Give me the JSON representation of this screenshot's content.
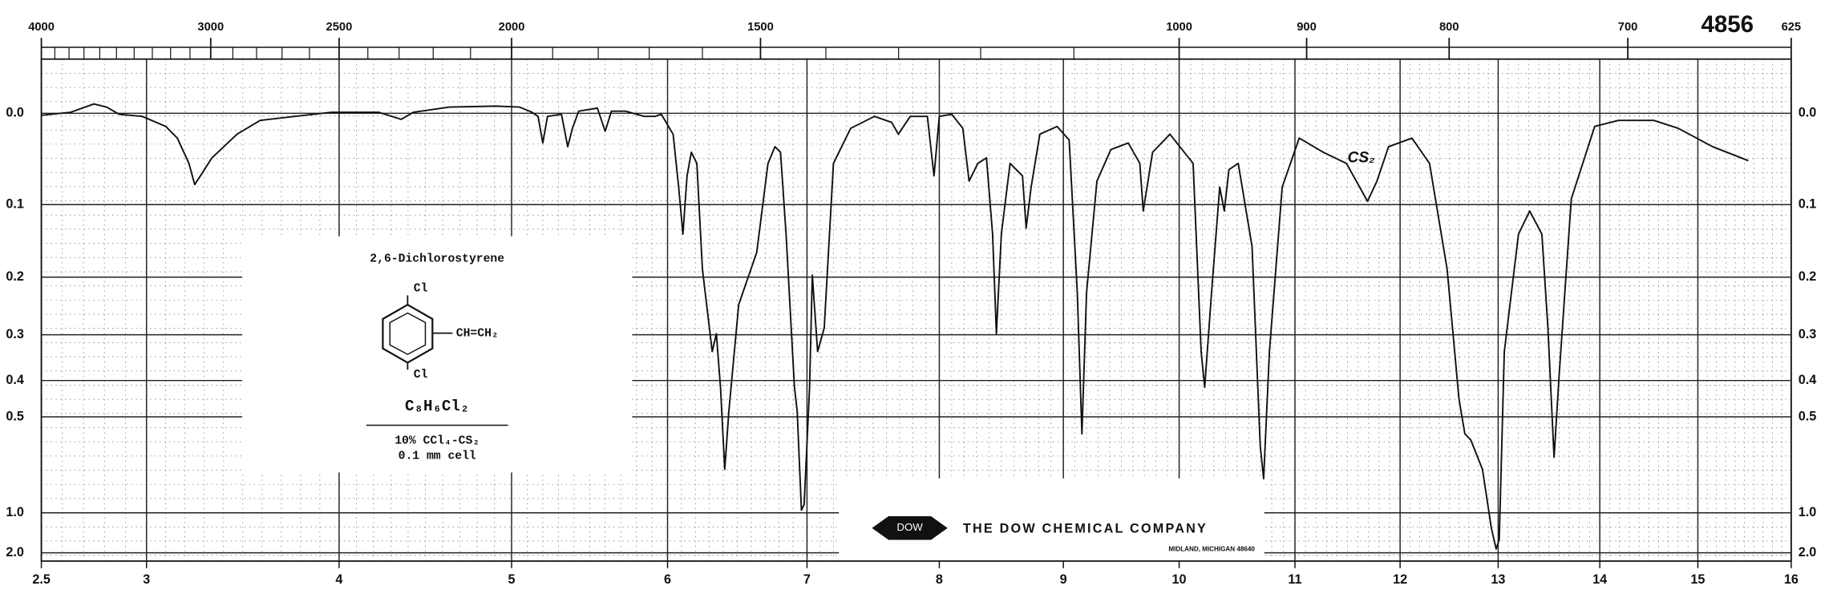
{
  "chart_data": {
    "type": "line",
    "title": "2,6-Dichlorostyrene",
    "chart_number": "4856",
    "annotations": {
      "substituent_top": "Cl",
      "substituent_side": "CH=CH₂",
      "substituent_bottom": "Cl",
      "formula": "C₈H₆Cl₂",
      "sample": "10% CCl₄-CS₂",
      "cell": "0.1 mm cell",
      "solvent_band": "CS₂"
    },
    "logo": {
      "mark": "DOW",
      "company": "THE DOW CHEMICAL COMPANY",
      "address": "MIDLAND, MICHIGAN 48640"
    },
    "x": [
      2.5,
      2.64,
      2.75,
      2.81,
      2.87,
      2.98,
      3.1,
      3.16,
      3.22,
      3.25,
      3.28,
      3.34,
      3.47,
      3.59,
      3.77,
      3.96,
      4.23,
      4.36,
      4.43,
      4.64,
      4.91,
      5.05,
      5.13,
      5.17,
      5.2,
      5.23,
      5.32,
      5.36,
      5.39,
      5.43,
      5.55,
      5.6,
      5.64,
      5.73,
      5.85,
      5.92,
      5.96,
      6.04,
      6.08,
      6.11,
      6.14,
      6.17,
      6.21,
      6.25,
      6.3,
      6.32,
      6.35,
      6.38,
      6.41,
      6.44,
      6.51,
      6.64,
      6.72,
      6.77,
      6.81,
      6.85,
      6.91,
      6.93,
      6.96,
      6.98,
      7.02,
      7.04,
      7.08,
      7.13,
      7.2,
      7.33,
      7.51,
      7.64,
      7.69,
      7.78,
      7.91,
      7.96,
      8.0,
      8.1,
      8.19,
      8.24,
      8.31,
      8.38,
      8.43,
      8.46,
      8.5,
      8.57,
      8.67,
      8.7,
      8.74,
      8.81,
      8.95,
      9.05,
      9.12,
      9.16,
      9.2,
      9.29,
      9.41,
      9.56,
      9.66,
      9.69,
      9.77,
      9.92,
      10.12,
      10.19,
      10.22,
      10.28,
      10.35,
      10.39,
      10.43,
      10.51,
      10.63,
      10.7,
      10.73,
      10.78,
      10.89,
      11.04,
      11.27,
      11.49,
      11.69,
      11.78,
      11.89,
      12.12,
      12.3,
      12.48,
      12.6,
      12.66,
      12.72,
      12.84,
      12.93,
      12.98,
      13.01,
      13.06,
      13.2,
      13.31,
      13.43,
      13.49,
      13.55,
      13.6,
      13.72,
      13.95,
      14.19,
      14.55,
      14.8,
      15.16,
      15.54
    ],
    "values": [
      0.002,
      -0.001,
      -0.009,
      -0.006,
      0.001,
      0.003,
      0.013,
      0.025,
      0.052,
      0.076,
      0.066,
      0.046,
      0.021,
      0.007,
      0.003,
      -0.001,
      -0.001,
      0.006,
      -0.001,
      -0.006,
      -0.007,
      -0.006,
      -0.001,
      0.003,
      0.03,
      0.003,
      0.001,
      0.034,
      0.015,
      -0.002,
      -0.005,
      0.018,
      -0.002,
      -0.002,
      0.003,
      0.003,
      0.001,
      0.021,
      0.079,
      0.138,
      0.066,
      0.04,
      0.052,
      0.188,
      0.287,
      0.334,
      0.298,
      0.417,
      0.703,
      0.482,
      0.245,
      0.163,
      0.052,
      0.034,
      0.04,
      0.138,
      0.417,
      0.482,
      0.975,
      0.924,
      0.417,
      0.197,
      0.334,
      0.287,
      0.052,
      0.015,
      0.003,
      0.009,
      0.021,
      0.003,
      0.003,
      0.066,
      0.003,
      0.001,
      0.015,
      0.072,
      0.052,
      0.046,
      0.138,
      0.298,
      0.138,
      0.052,
      0.066,
      0.13,
      0.079,
      0.021,
      0.013,
      0.027,
      0.225,
      0.556,
      0.225,
      0.072,
      0.037,
      0.03,
      0.052,
      0.108,
      0.04,
      0.021,
      0.052,
      0.334,
      0.417,
      0.225,
      0.079,
      0.108,
      0.059,
      0.052,
      0.155,
      0.6,
      0.752,
      0.334,
      0.079,
      0.025,
      0.04,
      0.052,
      0.096,
      0.072,
      0.034,
      0.025,
      0.052,
      0.188,
      0.447,
      0.556,
      0.578,
      0.703,
      1.18,
      1.73,
      1.4,
      0.334,
      0.138,
      0.108,
      0.138,
      0.287,
      0.648,
      0.387,
      0.093,
      0.013,
      0.007,
      0.007,
      0.015,
      0.034,
      0.049
    ],
    "color": "#111111",
    "yscale": "absorbance",
    "xlim": [
      2.5,
      16
    ],
    "xticks": [
      {
        "value": 2.5,
        "label": "2.5"
      },
      3,
      4,
      5,
      6,
      7,
      8,
      9,
      10,
      11,
      12,
      13,
      14,
      15,
      16
    ],
    "x2ticks": [
      4000,
      3000,
      2500,
      2000,
      1500,
      1000,
      900,
      800,
      700,
      625
    ],
    "ylim": [
      -0.05,
      2.0
    ],
    "yticks": [
      {
        "value": 0,
        "label": "0.0"
      },
      0.1,
      0.2,
      0.3,
      0.4,
      0.5,
      {
        "value": 1,
        "label": "1.0"
      },
      {
        "value": 2,
        "label": "2.0"
      }
    ],
    "grid": true
  }
}
